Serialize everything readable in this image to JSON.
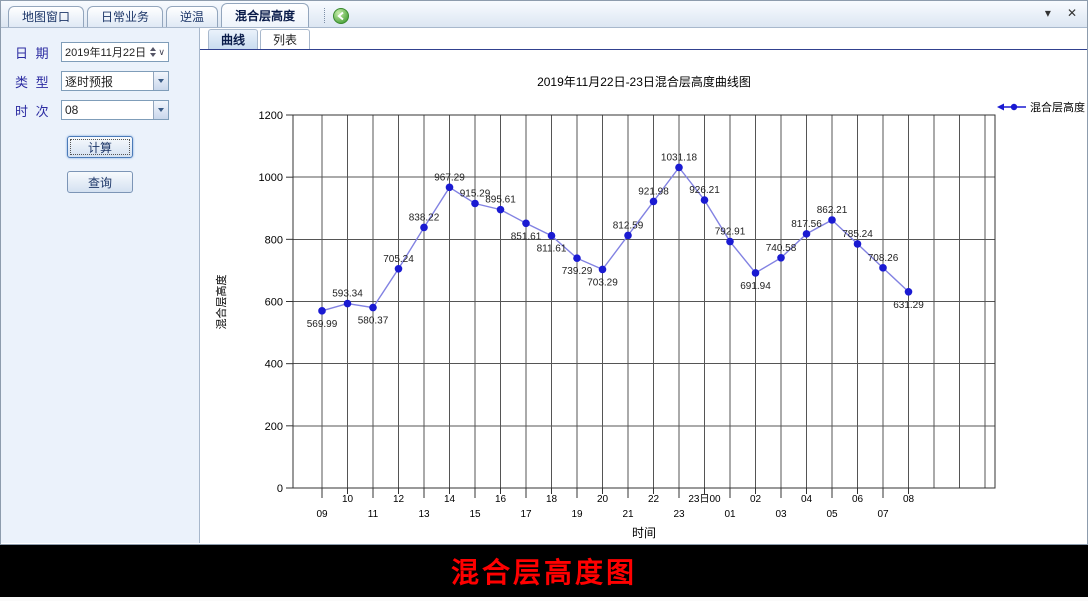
{
  "window": {
    "tabs": [
      {
        "label": "地图窗口",
        "active": false
      },
      {
        "label": "日常业务",
        "active": false
      },
      {
        "label": "逆温",
        "active": false
      },
      {
        "label": "混合层高度",
        "active": true
      }
    ],
    "controls": {
      "collapse": "▾",
      "close": "✕"
    }
  },
  "sidebar": {
    "fields": [
      {
        "label": "日 期",
        "value": "2019年11月22日",
        "type": "date-spinner"
      },
      {
        "label": "类 型",
        "value": "逐时预报",
        "type": "dropdown"
      },
      {
        "label": "时 次",
        "value": "08",
        "type": "dropdown"
      }
    ],
    "buttons": [
      {
        "label": "计算",
        "focused": true
      },
      {
        "label": "查询",
        "focused": false
      }
    ]
  },
  "main": {
    "subtabs": [
      {
        "label": "曲线",
        "active": true
      },
      {
        "label": "列表",
        "active": false
      }
    ]
  },
  "caption": "混合层高度图",
  "colors": {
    "sidebar_bg": "#ebf2fb",
    "caption_bg": "#000000",
    "caption_fg": "#ff0000",
    "label_navy": "#2c2ca2"
  },
  "chart_data": {
    "type": "line",
    "title": "2019年11月22日-23日混合层高度曲线图",
    "xlabel": "时间",
    "ylabel": "混合层高度",
    "legend": [
      "混合层高度"
    ],
    "legend_position": "right",
    "grid": true,
    "ylim": [
      0,
      1200
    ],
    "ytick_step": 200,
    "categories": [
      "09",
      "10",
      "11",
      "12",
      "13",
      "14",
      "15",
      "16",
      "17",
      "18",
      "19",
      "20",
      "21",
      "22",
      "23",
      "23日00",
      "01",
      "02",
      "03",
      "04",
      "05",
      "06",
      "07",
      "08"
    ],
    "values": [
      569.99,
      593.34,
      580.37,
      705.24,
      838.22,
      967.29,
      915.29,
      895.61,
      851.61,
      811.61,
      739.29,
      703.29,
      812.59,
      921.98,
      1031.18,
      926.21,
      792.91,
      691.94,
      740.58,
      817.56,
      862.21,
      785.24,
      708.26,
      631.29
    ],
    "label_pos": [
      "below",
      "above",
      "below",
      "above",
      "above",
      "above",
      "above",
      "above",
      "below",
      "below",
      "below",
      "below",
      "above",
      "above",
      "above",
      "above",
      "above",
      "below",
      "above",
      "above",
      "above",
      "above",
      "above",
      "below"
    ],
    "line_color": "#8282e2",
    "marker_color": "#1a1ad2",
    "grid_color": "#555555",
    "axis_color": "#333333",
    "text_color": "#000000",
    "point_label_color": "#222222"
  }
}
